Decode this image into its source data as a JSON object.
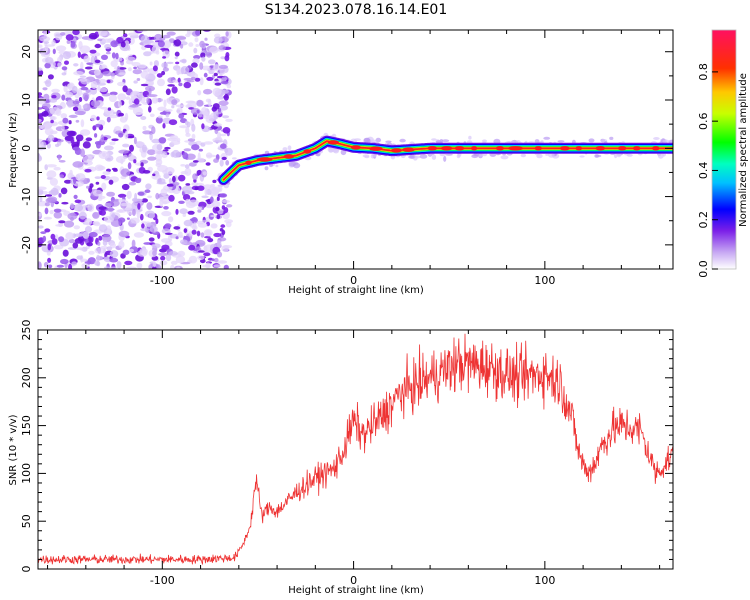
{
  "title": "S134.2023.078.16.14.E01",
  "chart_data": [
    {
      "type": "heatmap",
      "xlabel": "Height of straight line (km)",
      "ylabel": "Frequency (Hz)",
      "xlim": [
        -165,
        167
      ],
      "ylim": [
        -25,
        24.5
      ],
      "xticks": [
        -100,
        0,
        100
      ],
      "yticks": [
        -20,
        -10,
        0,
        10,
        20
      ],
      "grid": false,
      "noise_region_x": [
        -165,
        -68
      ],
      "ridge": {
        "x": [
          -68,
          -60,
          -50,
          -40,
          -30,
          -20,
          -14,
          -8,
          0,
          10,
          20,
          40,
          60,
          80,
          100,
          120,
          140,
          160,
          167
        ],
        "y": [
          -6.5,
          -3.5,
          -2.5,
          -2,
          -1.5,
          0,
          1.5,
          1,
          0.2,
          0,
          -0.5,
          0,
          0,
          0,
          0,
          0,
          0,
          0,
          0
        ]
      },
      "colorbar": {
        "label": "Normalized spectral amplitude",
        "range": [
          0,
          0.97
        ],
        "ticks": [
          "0.0",
          "0.2",
          "0.4",
          "0.6",
          "0.8"
        ],
        "tick_values": [
          0,
          0.2,
          0.4,
          0.6,
          0.8
        ]
      }
    },
    {
      "type": "line",
      "xlabel": "Height of straight line (km)",
      "ylabel": "SNR (10 * v/v)",
      "xlim": [
        -165,
        167
      ],
      "ylim": [
        0,
        250
      ],
      "xticks": [
        -100,
        0,
        100
      ],
      "yticks": [
        0,
        50,
        100,
        150,
        200,
        250
      ],
      "grid": false,
      "color": "#ee3333",
      "series": [
        {
          "x": [
            -165,
            -140,
            -110,
            -80,
            -62,
            -58,
            -54,
            -51,
            -48,
            -44,
            -40,
            -30,
            -20,
            -10,
            -5,
            0,
            5,
            15,
            25,
            40,
            55,
            70,
            85,
            100,
            108,
            114,
            118,
            122,
            126,
            130,
            135,
            140,
            150,
            158,
            163,
            167
          ],
          "values": [
            10,
            10,
            10,
            10,
            12,
            25,
            45,
            95,
            55,
            65,
            60,
            80,
            95,
            105,
            125,
            155,
            140,
            160,
            185,
            200,
            215,
            212,
            200,
            205,
            195,
            160,
            120,
            100,
            110,
            130,
            145,
            150,
            145,
            100,
            110,
            120
          ]
        }
      ]
    }
  ]
}
